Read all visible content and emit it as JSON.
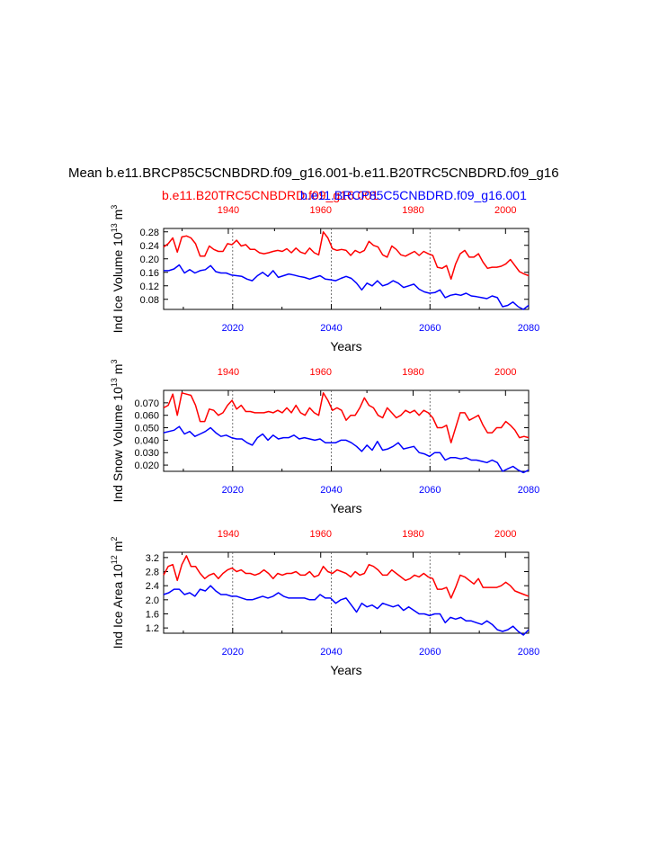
{
  "figure": {
    "title": "Mean b.e11.BRCP85C5CNBDRD.f09_g16.001-b.e11.B20TRC5CNBDRD.f09_g16",
    "legend": {
      "red_label": "b.e11.B20TRC5CNBDRD.f09_g16.001",
      "blue_label": "b.e11.BRCP85C5CNBDRD.f09_g16.001"
    },
    "colors": {
      "red": "#ff0000",
      "blue": "#0000ff",
      "axis": "#000000"
    }
  },
  "chart_data": [
    {
      "type": "line",
      "ylabel": {
        "base": "Ind Ice Volume 10",
        "exp": "13",
        "unit": " m",
        "unit_exp": "3"
      },
      "xlabel": "Years",
      "ylim": [
        0.05,
        0.29
      ],
      "yticks": [
        0.08,
        0.12,
        0.16,
        0.2,
        0.24,
        0.28
      ],
      "ytick_labels": [
        "0.08",
        "0.12",
        "0.16",
        "0.20",
        "0.24",
        "0.28"
      ],
      "bottom_x": {
        "range": [
          2006,
          2080
        ],
        "ticks": [
          2020,
          2040,
          2060,
          2080
        ],
        "labels": [
          "2020",
          "2040",
          "2060",
          "2080"
        ]
      },
      "top_x": {
        "range": [
          1926,
          2005
        ],
        "ticks": [
          1940,
          1960,
          1980,
          2000
        ],
        "labels": [
          "1940",
          "1960",
          "1980",
          "2000"
        ]
      },
      "vlines": [
        2020,
        2040,
        2060
      ],
      "series": [
        {
          "name": "b.e11.B20TRC5CNBDRD.f09_g16.001",
          "color": "red",
          "values": [
            0.235,
            0.245,
            0.262,
            0.22,
            0.265,
            0.268,
            0.262,
            0.245,
            0.208,
            0.208,
            0.238,
            0.228,
            0.222,
            0.222,
            0.245,
            0.242,
            0.255,
            0.238,
            0.242,
            0.228,
            0.228,
            0.218,
            0.215,
            0.218,
            0.222,
            0.225,
            0.222,
            0.23,
            0.218,
            0.232,
            0.22,
            0.215,
            0.232,
            0.218,
            0.212,
            0.28,
            0.262,
            0.23,
            0.225,
            0.228,
            0.225,
            0.21,
            0.225,
            0.218,
            0.225,
            0.252,
            0.24,
            0.235,
            0.212,
            0.205,
            0.238,
            0.228,
            0.212,
            0.208,
            0.215,
            0.222,
            0.21,
            0.222,
            0.215,
            0.21,
            0.175,
            0.172,
            0.18,
            0.14,
            0.185,
            0.215,
            0.225,
            0.205,
            0.205,
            0.215,
            0.19,
            0.172,
            0.175,
            0.175,
            0.178,
            0.185,
            0.198,
            0.18,
            0.162,
            0.155,
            0.15
          ]
        },
        {
          "name": "b.e11.BRCP85C5CNBDRD.f09_g16.001",
          "color": "blue",
          "values": [
            0.165,
            0.165,
            0.17,
            0.182,
            0.158,
            0.168,
            0.158,
            0.165,
            0.168,
            0.18,
            0.162,
            0.158,
            0.158,
            0.152,
            0.15,
            0.148,
            0.14,
            0.135,
            0.15,
            0.16,
            0.148,
            0.165,
            0.145,
            0.15,
            0.155,
            0.152,
            0.148,
            0.145,
            0.14,
            0.145,
            0.15,
            0.14,
            0.138,
            0.135,
            0.142,
            0.148,
            0.142,
            0.128,
            0.108,
            0.128,
            0.12,
            0.135,
            0.12,
            0.125,
            0.135,
            0.128,
            0.115,
            0.12,
            0.125,
            0.11,
            0.102,
            0.098,
            0.1,
            0.108,
            0.085,
            0.092,
            0.095,
            0.092,
            0.098,
            0.09,
            0.088,
            0.085,
            0.082,
            0.09,
            0.085,
            0.058,
            0.062,
            0.072,
            0.058,
            0.05,
            0.062
          ]
        }
      ]
    },
    {
      "type": "line",
      "ylabel": {
        "base": "Ind Snow Volume 10",
        "exp": "13",
        "unit": " m",
        "unit_exp": "3"
      },
      "xlabel": "Years",
      "ylim": [
        0.015,
        0.08
      ],
      "yticks": [
        0.02,
        0.03,
        0.04,
        0.05,
        0.06,
        0.07
      ],
      "ytick_labels": [
        "0.020",
        "0.030",
        "0.040",
        "0.050",
        "0.060",
        "0.070"
      ],
      "bottom_x": {
        "range": [
          2006,
          2080
        ],
        "ticks": [
          2020,
          2040,
          2060,
          2080
        ],
        "labels": [
          "2020",
          "2040",
          "2060",
          "2080"
        ]
      },
      "top_x": {
        "range": [
          1926,
          2005
        ],
        "ticks": [
          1940,
          1960,
          1980,
          2000
        ],
        "labels": [
          "1940",
          "1960",
          "1980",
          "2000"
        ]
      },
      "vlines": [
        2020,
        2040,
        2060
      ],
      "series": [
        {
          "name": "b.e11.B20TRC5CNBDRD.f09_g16.001",
          "color": "red",
          "values": [
            0.066,
            0.068,
            0.077,
            0.06,
            0.078,
            0.077,
            0.076,
            0.068,
            0.055,
            0.055,
            0.065,
            0.064,
            0.06,
            0.062,
            0.068,
            0.072,
            0.065,
            0.068,
            0.063,
            0.063,
            0.062,
            0.062,
            0.062,
            0.063,
            0.062,
            0.064,
            0.062,
            0.066,
            0.062,
            0.068,
            0.062,
            0.06,
            0.066,
            0.062,
            0.06,
            0.078,
            0.072,
            0.064,
            0.066,
            0.064,
            0.056,
            0.06,
            0.06,
            0.066,
            0.074,
            0.068,
            0.066,
            0.06,
            0.058,
            0.066,
            0.062,
            0.058,
            0.06,
            0.064,
            0.062,
            0.064,
            0.06,
            0.064,
            0.062,
            0.058,
            0.05,
            0.05,
            0.052,
            0.038,
            0.05,
            0.062,
            0.062,
            0.056,
            0.058,
            0.06,
            0.052,
            0.046,
            0.046,
            0.05,
            0.05,
            0.055,
            0.052,
            0.048,
            0.042,
            0.043,
            0.042
          ]
        },
        {
          "name": "b.e11.BRCP85C5CNBDRD.f09_g16.001",
          "color": "blue",
          "values": [
            0.046,
            0.047,
            0.048,
            0.051,
            0.045,
            0.047,
            0.043,
            0.045,
            0.047,
            0.05,
            0.046,
            0.043,
            0.044,
            0.042,
            0.041,
            0.041,
            0.038,
            0.036,
            0.042,
            0.045,
            0.04,
            0.044,
            0.041,
            0.042,
            0.042,
            0.044,
            0.041,
            0.042,
            0.041,
            0.04,
            0.041,
            0.038,
            0.038,
            0.038,
            0.04,
            0.04,
            0.038,
            0.035,
            0.031,
            0.036,
            0.032,
            0.039,
            0.032,
            0.033,
            0.035,
            0.038,
            0.033,
            0.034,
            0.035,
            0.03,
            0.029,
            0.027,
            0.03,
            0.03,
            0.024,
            0.026,
            0.026,
            0.025,
            0.026,
            0.024,
            0.024,
            0.023,
            0.022,
            0.024,
            0.022,
            0.015,
            0.017,
            0.019,
            0.016,
            0.014,
            0.016
          ]
        }
      ]
    },
    {
      "type": "line",
      "ylabel": {
        "base": "Ind Ice Area 10",
        "exp": "12",
        "unit": " m",
        "unit_exp": "2"
      },
      "xlabel": "Years",
      "ylim": [
        1.05,
        3.35
      ],
      "yticks": [
        1.2,
        1.6,
        2.0,
        2.4,
        2.8,
        3.2
      ],
      "ytick_labels": [
        "1.2",
        "1.6",
        "2.0",
        "2.4",
        "2.8",
        "3.2"
      ],
      "bottom_x": {
        "range": [
          2006,
          2080
        ],
        "ticks": [
          2020,
          2040,
          2060,
          2080
        ],
        "labels": [
          "2020",
          "2040",
          "2060",
          "2080"
        ]
      },
      "top_x": {
        "range": [
          1926,
          2005
        ],
        "ticks": [
          1940,
          1960,
          1980,
          2000
        ],
        "labels": [
          "1940",
          "1960",
          "1980",
          "2000"
        ]
      },
      "vlines": [
        2020,
        2040,
        2060
      ],
      "series": [
        {
          "name": "b.e11.B20TRC5CNBDRD.f09_g16.001",
          "color": "red",
          "values": [
            2.7,
            2.95,
            3.0,
            2.55,
            3.0,
            3.25,
            2.95,
            2.95,
            2.75,
            2.6,
            2.7,
            2.75,
            2.6,
            2.75,
            2.85,
            2.9,
            2.8,
            2.85,
            2.75,
            2.75,
            2.7,
            2.75,
            2.85,
            2.75,
            2.6,
            2.75,
            2.7,
            2.75,
            2.75,
            2.8,
            2.7,
            2.7,
            2.8,
            2.65,
            2.7,
            2.95,
            2.8,
            2.75,
            2.85,
            2.8,
            2.75,
            2.65,
            2.8,
            2.7,
            2.75,
            3.0,
            2.95,
            2.85,
            2.7,
            2.7,
            2.85,
            2.75,
            2.65,
            2.55,
            2.6,
            2.7,
            2.65,
            2.75,
            2.65,
            2.6,
            2.3,
            2.3,
            2.35,
            2.05,
            2.35,
            2.7,
            2.65,
            2.55,
            2.45,
            2.6,
            2.35,
            2.35,
            2.35,
            2.35,
            2.4,
            2.5,
            2.4,
            2.25,
            2.2,
            2.15,
            2.1
          ]
        },
        {
          "name": "b.e11.BRCP85C5CNBDRD.f09_g16.001",
          "color": "blue",
          "values": [
            2.15,
            2.2,
            2.3,
            2.3,
            2.15,
            2.2,
            2.1,
            2.3,
            2.25,
            2.4,
            2.25,
            2.15,
            2.15,
            2.1,
            2.1,
            2.05,
            2.0,
            2.0,
            2.05,
            2.1,
            2.05,
            2.1,
            2.2,
            2.1,
            2.05,
            2.05,
            2.05,
            2.05,
            2.0,
            2.0,
            2.15,
            2.05,
            2.05,
            1.9,
            2.0,
            2.05,
            1.85,
            1.65,
            1.9,
            1.8,
            1.85,
            1.75,
            1.9,
            1.85,
            1.8,
            1.85,
            1.7,
            1.8,
            1.7,
            1.6,
            1.6,
            1.55,
            1.6,
            1.6,
            1.35,
            1.5,
            1.45,
            1.5,
            1.4,
            1.4,
            1.35,
            1.3,
            1.4,
            1.3,
            1.15,
            1.1,
            1.15,
            1.25,
            1.1,
            1.0,
            1.15
          ]
        }
      ]
    }
  ]
}
